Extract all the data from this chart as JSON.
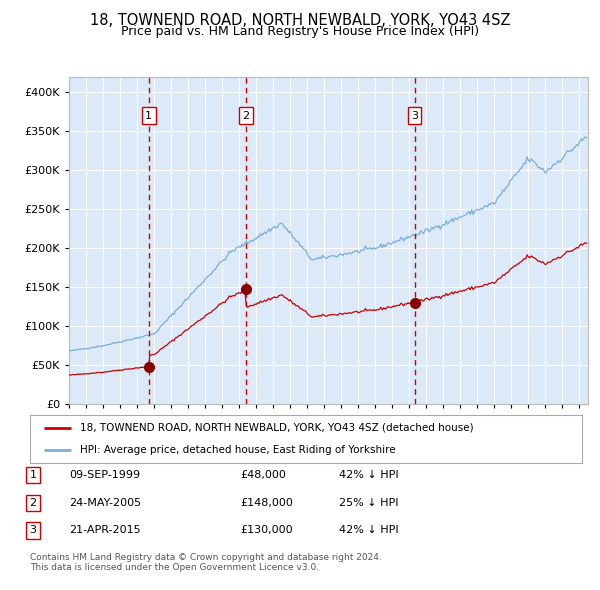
{
  "title": "18, TOWNEND ROAD, NORTH NEWBALD, YORK, YO43 4SZ",
  "subtitle": "Price paid vs. HM Land Registry's House Price Index (HPI)",
  "legend_line1": "18, TOWNEND ROAD, NORTH NEWBALD, YORK, YO43 4SZ (detached house)",
  "legend_line2": "HPI: Average price, detached house, East Riding of Yorkshire",
  "footer1": "Contains HM Land Registry data © Crown copyright and database right 2024.",
  "footer2": "This data is licensed under the Open Government Licence v3.0.",
  "transactions": [
    {
      "num": 1,
      "date": "09-SEP-1999",
      "price": 48000,
      "pct": "42%",
      "dir": "↓"
    },
    {
      "num": 2,
      "date": "24-MAY-2005",
      "price": 148000,
      "pct": "25%",
      "dir": "↓"
    },
    {
      "num": 3,
      "date": "21-APR-2015",
      "price": 130000,
      "pct": "42%",
      "dir": "↓"
    }
  ],
  "transaction_years": [
    1999.69,
    2005.39,
    2015.31
  ],
  "transaction_prices": [
    48000,
    148000,
    130000
  ],
  "ylim": [
    0,
    420000
  ],
  "yticks": [
    0,
    50000,
    100000,
    150000,
    200000,
    250000,
    300000,
    350000,
    400000
  ],
  "plot_bg": "#dce9f8",
  "grid_color": "#ffffff",
  "red_line_color": "#cc0000",
  "blue_line_color": "#7bafd4",
  "dashed_line_color": "#cc0000",
  "marker_color": "#880000",
  "xlim_start": 1995.0,
  "xlim_end": 2025.5
}
